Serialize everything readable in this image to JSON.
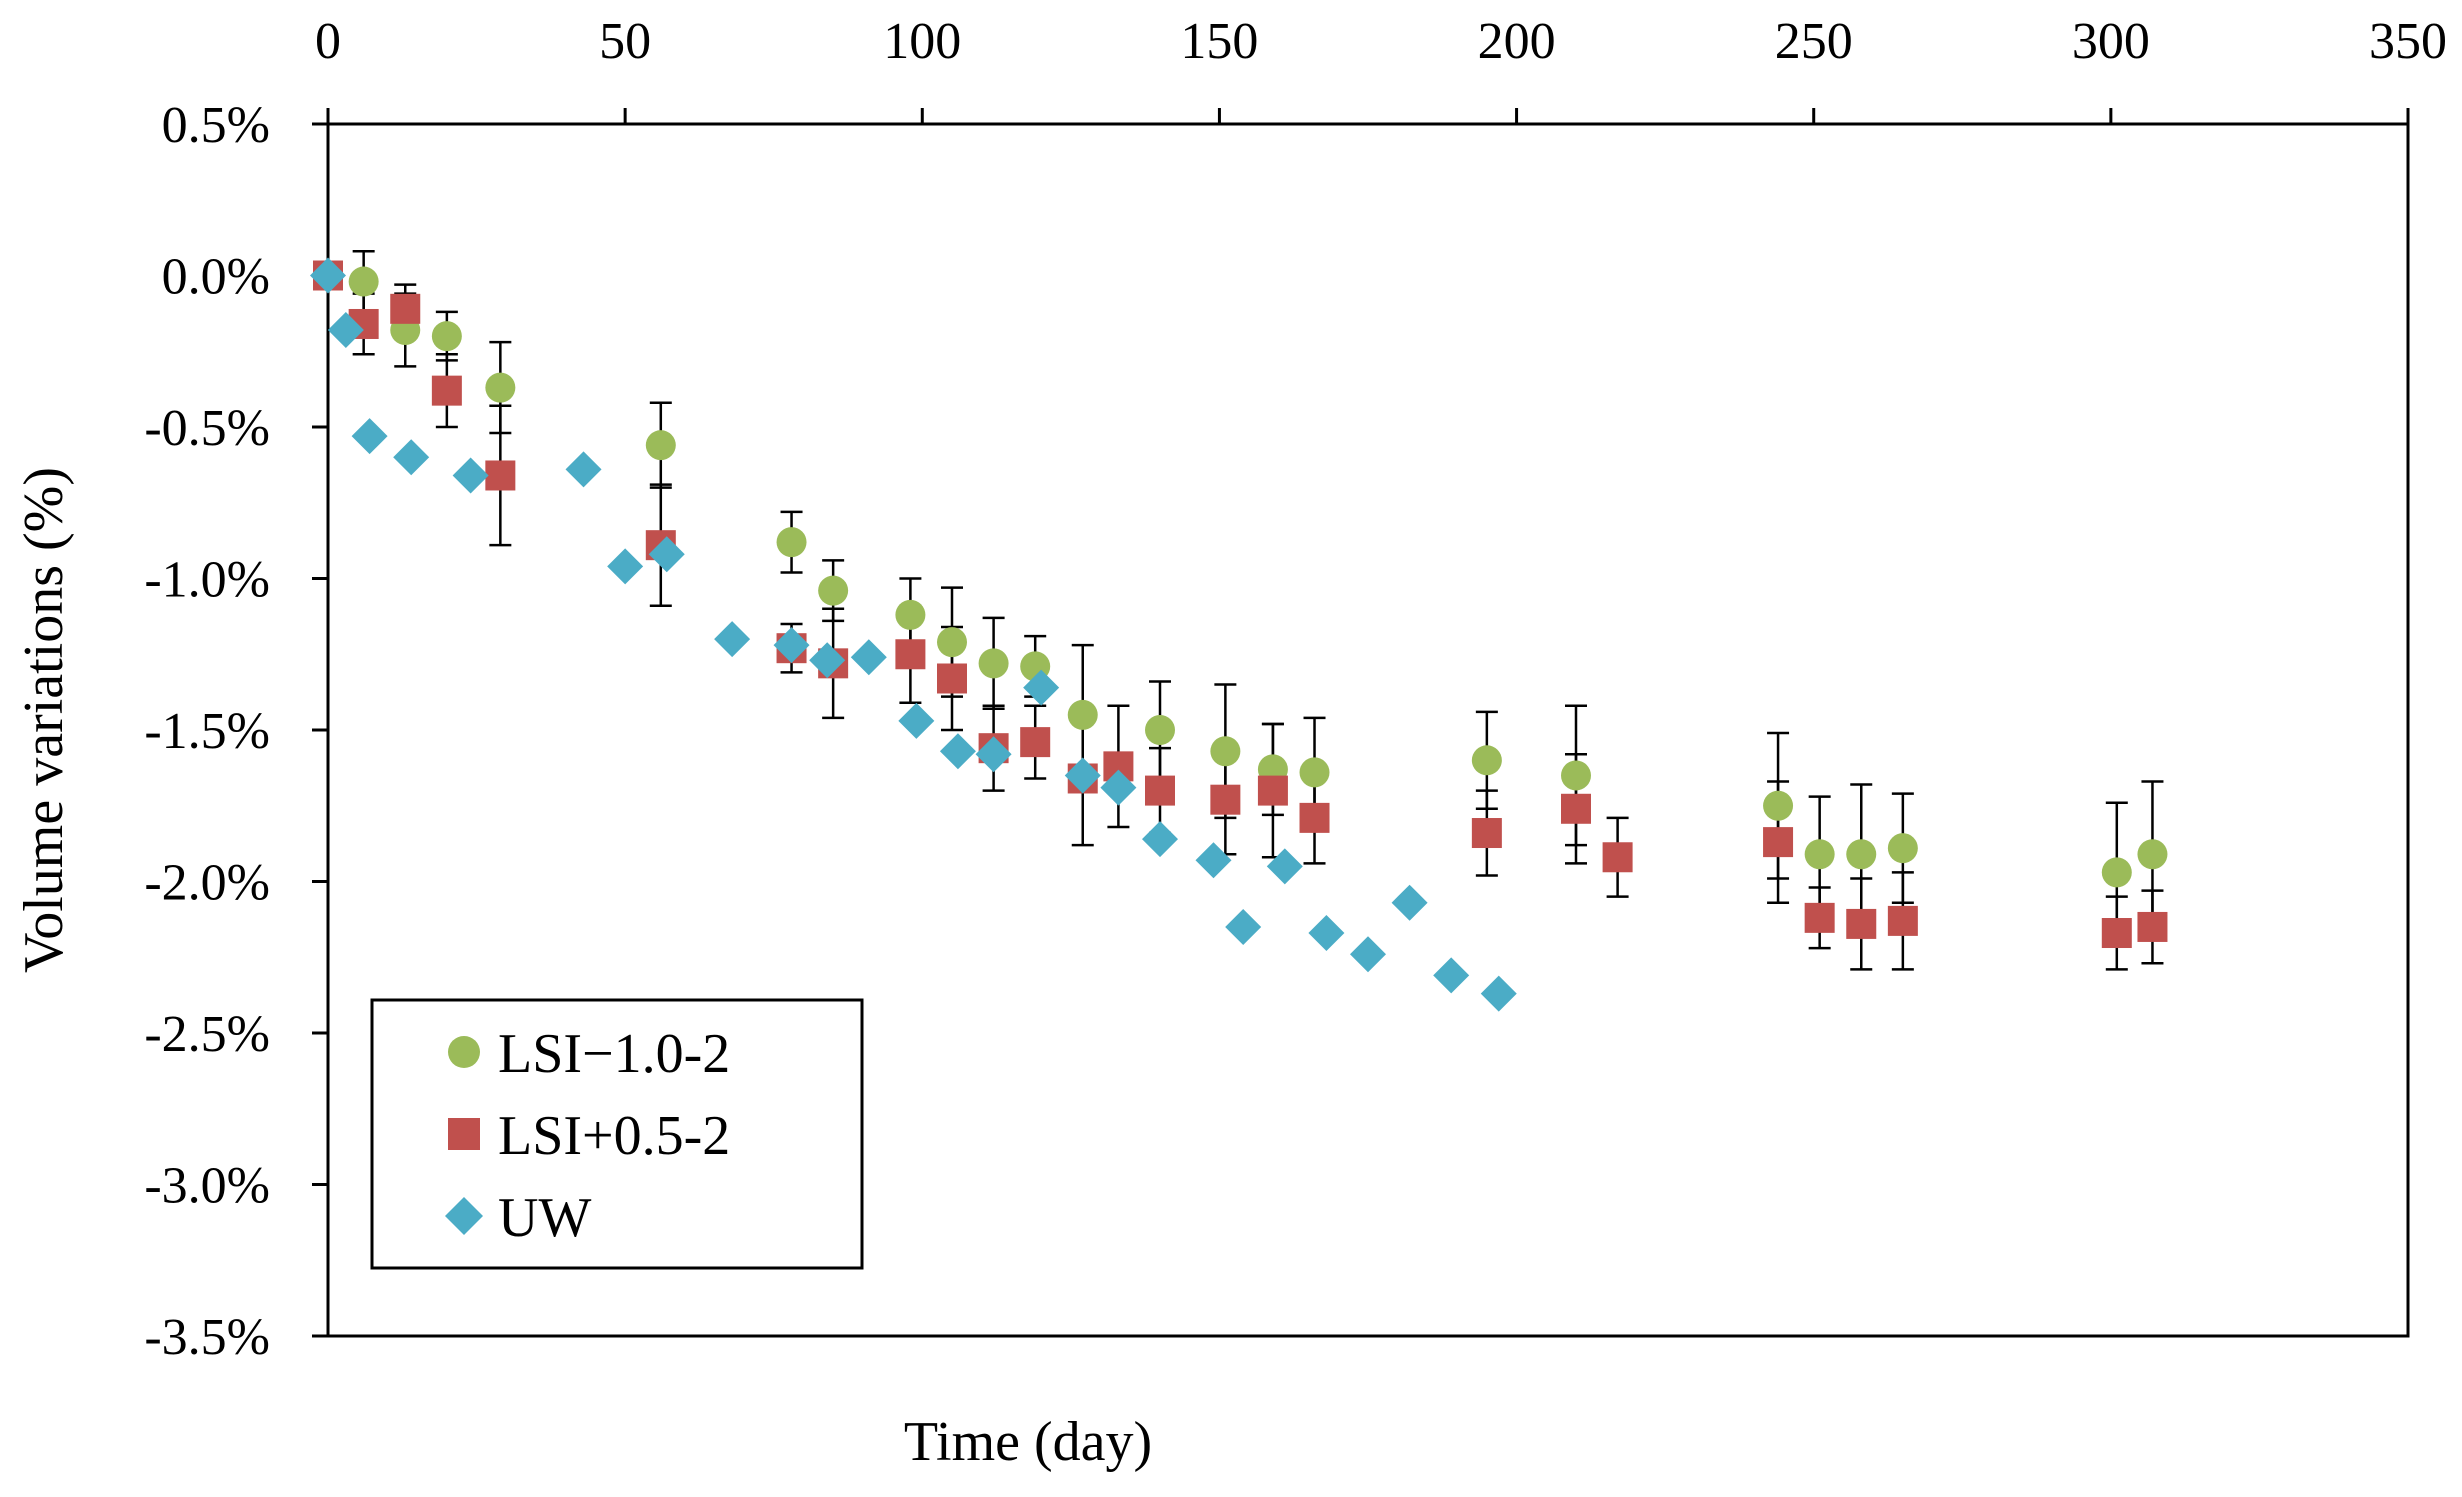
{
  "chart_data": {
    "type": "scatter",
    "title": "",
    "xlabel": "Time (day)",
    "ylabel": "Volume variations (%)",
    "x_axis_position": "top",
    "xlim": [
      0,
      350
    ],
    "ylim": [
      -3.5,
      0.5
    ],
    "xticks": [
      0,
      50,
      100,
      150,
      200,
      250,
      300,
      350
    ],
    "yticks": [
      0.5,
      0.0,
      -0.5,
      -1.0,
      -1.5,
      -2.0,
      -2.5,
      -3.0,
      -3.5
    ],
    "xtick_labels": [
      "0",
      "50",
      "100",
      "150",
      "200",
      "250",
      "300",
      "350"
    ],
    "ytick_labels": [
      "0.5%",
      "0.0%",
      "-0.5%",
      "-1.0%",
      "-1.5%",
      "-2.0%",
      "-2.5%",
      "-3.0%",
      "-3.5%"
    ],
    "y_unit": "percent",
    "grid": false,
    "legend_position": "bottom-left",
    "series": [
      {
        "name": "LSI−1.0-2",
        "marker": "circle",
        "color": "#9bbb59",
        "x": [
          0,
          6,
          13,
          20,
          29,
          56,
          78,
          85,
          98,
          105,
          112,
          119,
          127,
          140,
          151,
          159,
          166,
          195,
          210,
          244,
          251,
          258,
          265,
          301,
          307
        ],
        "y": [
          0.0,
          -0.02,
          -0.18,
          -0.2,
          -0.37,
          -0.56,
          -0.88,
          -1.04,
          -1.12,
          -1.21,
          -1.28,
          -1.29,
          -1.45,
          -1.5,
          -1.57,
          -1.63,
          -1.64,
          -1.6,
          -1.65,
          -1.75,
          -1.91,
          -1.91,
          -1.89,
          -1.97,
          -1.91
        ],
        "err": [
          0,
          0.1,
          0.12,
          0.08,
          0.15,
          0.14,
          0.1,
          0.1,
          0.12,
          0.18,
          0.15,
          0.1,
          0.23,
          0.16,
          0.22,
          0.15,
          0.18,
          0.16,
          0.23,
          0.24,
          0.19,
          0.23,
          0.18,
          0.23,
          0.24
        ]
      },
      {
        "name": "LSI+0.5-2",
        "marker": "square",
        "color": "#c0504d",
        "x": [
          0,
          6,
          13,
          20,
          29,
          56,
          78,
          85,
          98,
          105,
          112,
          119,
          127,
          133,
          140,
          151,
          159,
          166,
          195,
          210,
          217,
          244,
          251,
          258,
          265,
          301,
          307
        ],
        "y": [
          0.0,
          -0.16,
          -0.11,
          -0.38,
          -0.66,
          -0.89,
          -1.23,
          -1.28,
          -1.25,
          -1.33,
          -1.56,
          -1.54,
          -1.66,
          -1.62,
          -1.7,
          -1.73,
          -1.7,
          -1.79,
          -1.84,
          -1.76,
          -1.92,
          -1.87,
          -2.12,
          -2.14,
          -2.13,
          -2.17,
          -2.15
        ],
        "err": [
          0,
          0.1,
          0.08,
          0.12,
          0.23,
          0.2,
          0.08,
          0.18,
          0.16,
          0.17,
          0.14,
          0.12,
          0.22,
          0.2,
          0.14,
          0.18,
          0.22,
          0.15,
          0.14,
          0.18,
          0.13,
          0.2,
          0.1,
          0.15,
          0.16,
          0.12,
          0.12
        ]
      },
      {
        "name": "UW",
        "marker": "diamond",
        "color": "#4bacc6",
        "x": [
          0,
          3,
          7,
          14,
          24,
          43,
          50,
          57,
          68,
          78,
          84,
          91,
          99,
          106,
          112,
          120,
          127,
          133,
          140,
          149,
          154,
          161,
          168,
          175,
          182,
          189,
          197
        ],
        "y": [
          0.0,
          -0.18,
          -0.53,
          -0.6,
          -0.66,
          -0.64,
          -0.96,
          -0.92,
          -1.2,
          -1.22,
          -1.27,
          -1.26,
          -1.47,
          -1.57,
          -1.58,
          -1.36,
          -1.65,
          -1.69,
          -1.86,
          -1.93,
          -2.15,
          -1.95,
          -2.17,
          -2.24,
          -2.07,
          -2.31,
          -2.37
        ]
      }
    ]
  }
}
